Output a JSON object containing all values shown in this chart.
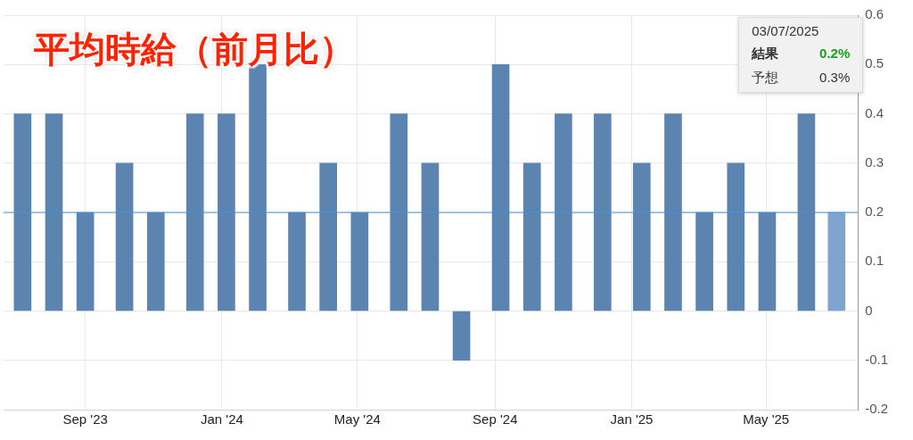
{
  "chart_data": {
    "type": "bar",
    "title": "平均時給（前月比）",
    "x": [
      "2023-07-07",
      "2023-08-04",
      "2023-09-01",
      "2023-10-06",
      "2023-11-03",
      "2023-12-08",
      "2024-01-05",
      "2024-02-02",
      "2024-03-08",
      "2024-04-05",
      "2024-05-03",
      "2024-06-07",
      "2024-07-05",
      "2024-08-02",
      "2024-09-06",
      "2024-10-04",
      "2024-11-01",
      "2024-12-06",
      "2025-01-10",
      "2025-02-07",
      "2025-03-07",
      "2025-04-04",
      "2025-05-02",
      "2025-06-06",
      "2025-07-03"
    ],
    "values": [
      0.4,
      0.4,
      0.2,
      0.3,
      0.2,
      0.4,
      0.4,
      0.5,
      0.2,
      0.3,
      0.2,
      0.4,
      0.3,
      -0.1,
      0.5,
      0.3,
      0.4,
      0.4,
      0.3,
      0.4,
      0.2,
      0.3,
      0.2,
      0.4,
      0.2
    ],
    "colors": [
      "#5b84b1",
      "#5b84b1",
      "#5b84b1",
      "#5b84b1",
      "#5b84b1",
      "#5b84b1",
      "#5b84b1",
      "#5b84b1",
      "#5b84b1",
      "#5b84b1",
      "#5b84b1",
      "#5b84b1",
      "#5b84b1",
      "#5b84b1",
      "#5b84b1",
      "#5b84b1",
      "#5b84b1",
      "#5b84b1",
      "#5b84b1",
      "#5b84b1",
      "#5b84b1",
      "#5b84b1",
      "#5b84b1",
      "#5b84b1",
      "#7ea4cf"
    ],
    "xlim": [
      "2023-06-20",
      "2025-07-22"
    ],
    "xticks": [
      {
        "value": "2023-09-01",
        "label": "Sep '23"
      },
      {
        "value": "2024-01-01",
        "label": "Jan '24"
      },
      {
        "value": "2024-05-01",
        "label": "May '24"
      },
      {
        "value": "2024-09-01",
        "label": "Sep '24"
      },
      {
        "value": "2025-01-01",
        "label": "Jan '25"
      },
      {
        "value": "2025-05-01",
        "label": "May '25"
      }
    ],
    "ylim": [
      -0.2,
      0.6
    ],
    "yticks": [
      -0.2,
      -0.1,
      0,
      0.1,
      0.2,
      0.3,
      0.4,
      0.5,
      0.6
    ],
    "grid": true,
    "legend": false,
    "ref_lines": [
      {
        "axis": "y",
        "value": 0.2,
        "color": "#4a90d9"
      }
    ],
    "annotations": [
      "03/07/2025",
      "結果",
      "0.2%",
      "予想",
      "0.3%"
    ]
  }
}
